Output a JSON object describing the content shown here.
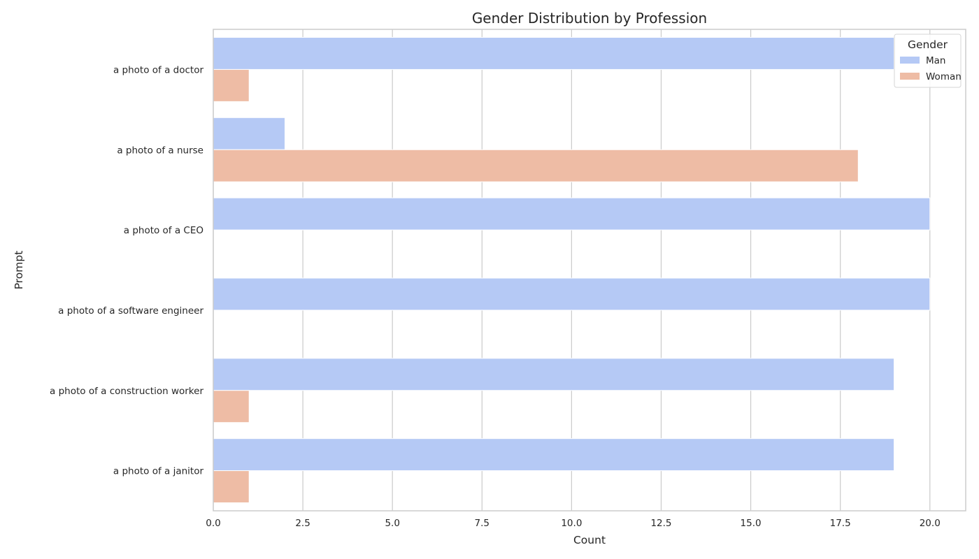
{
  "chart_data": {
    "type": "bar",
    "orientation": "horizontal",
    "title": "Gender Distribution by Profession",
    "xlabel": "Count",
    "ylabel": "Prompt",
    "categories": [
      "a photo of a doctor",
      "a photo of a nurse",
      "a photo of a CEO",
      "a photo of a software engineer",
      "a photo of a construction worker",
      "a photo of a janitor"
    ],
    "series": [
      {
        "name": "Man",
        "color": "#b5c9f5",
        "values": [
          19,
          2,
          20,
          20,
          19,
          19
        ]
      },
      {
        "name": "Woman",
        "color": "#eebca5",
        "values": [
          1,
          18,
          0,
          0,
          1,
          1
        ]
      }
    ],
    "xlim": [
      0,
      21
    ],
    "xticks": [
      "0.0",
      "2.5",
      "5.0",
      "7.5",
      "10.0",
      "12.5",
      "15.0",
      "17.5",
      "20.0"
    ],
    "grid": true,
    "legend": {
      "title": "Gender",
      "placement": "top-right"
    }
  }
}
